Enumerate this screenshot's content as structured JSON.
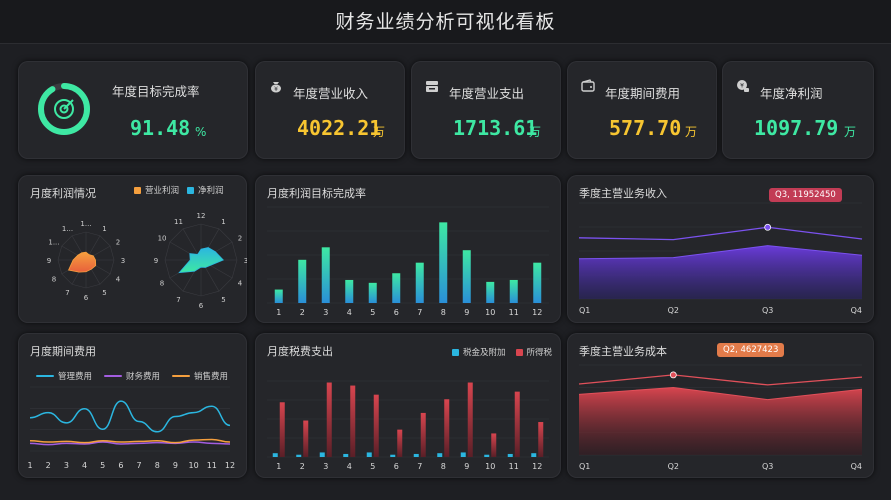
{
  "title": "财务业绩分析可视化看板",
  "kpis": {
    "target": {
      "label": "年度目标完成率",
      "value": "91.48",
      "unit": "%",
      "percent": 91.48
    },
    "revenue": {
      "label": "年度营业收入",
      "value": "4022.21",
      "unit": "万"
    },
    "expense": {
      "label": "年度营业支出",
      "value": "1713.61",
      "unit": "万"
    },
    "period_cost": {
      "label": "年度期间费用",
      "value": "577.70",
      "unit": "万"
    },
    "net_profit": {
      "label": "年度净利润",
      "value": "1097.79",
      "unit": "万"
    }
  },
  "colors": {
    "green": "#3ee8a3",
    "yellow": "#f7c531",
    "cyan": "#2bb6e0",
    "orange": "#f59f3e",
    "red": "#d8454f",
    "purple": "#6a3bd9"
  },
  "icons": [
    "target-icon",
    "money-bag-icon",
    "cash-register-icon",
    "wallet-icon",
    "coins-icon"
  ],
  "chart_data": [
    {
      "id": "monthly-profit",
      "type": "radar",
      "title": "月度利润情况",
      "legend": [
        "营业利润",
        "净利润"
      ],
      "legend_colors": [
        "#f59f3e",
        "#2bb6e0"
      ],
      "radar_left_labels": [
        "1...",
        "1",
        "2",
        "3",
        "4",
        "5",
        "6",
        "7",
        "8",
        "9",
        "1...",
        "1..."
      ],
      "radar_right_labels": [
        "12",
        "1",
        "2",
        "3",
        "4",
        "5",
        "6",
        "7",
        "8",
        "9",
        "10",
        "11"
      ],
      "series": [
        {
          "name": "营业利润",
          "values": [
            0.28,
            0.22,
            0.3,
            0.34,
            0.4,
            0.38,
            0.42,
            0.5,
            0.72,
            0.46,
            0.34,
            0.3
          ]
        },
        {
          "name": "净利润",
          "values": [
            0.3,
            0.4,
            0.46,
            0.62,
            0.3,
            0.24,
            0.2,
            0.36,
            0.7,
            0.3,
            0.36,
            0.18
          ]
        }
      ]
    },
    {
      "id": "profit-target",
      "type": "bar",
      "title": "月度利润目标完成率",
      "categories": [
        "1",
        "2",
        "3",
        "4",
        "5",
        "6",
        "7",
        "8",
        "9",
        "10",
        "11",
        "12"
      ],
      "values": [
        14,
        45,
        58,
        24,
        21,
        31,
        42,
        84,
        55,
        22,
        24,
        42
      ],
      "ylim": [
        0,
        100
      ]
    },
    {
      "id": "quarter-revenue",
      "type": "area",
      "title": "季度主营业务收入",
      "categories": [
        "Q1",
        "Q2",
        "Q3",
        "Q4"
      ],
      "series": [
        {
          "name": "line",
          "values": [
            10200000,
            9900000,
            11952450,
            10000000
          ]
        },
        {
          "name": "area",
          "values": [
            6700000,
            6900000,
            8900000,
            7300000
          ]
        }
      ],
      "ylim": [
        0,
        16000000
      ],
      "tooltip": "Q3, 11952450"
    },
    {
      "id": "period-cost",
      "type": "line",
      "title": "月度期间费用",
      "legend": [
        "管理费用",
        "财务费用",
        "销售费用"
      ],
      "legend_colors": [
        "#2bb6e0",
        "#a35de0",
        "#f59f3e"
      ],
      "categories": [
        "1",
        "2",
        "3",
        "4",
        "5",
        "6",
        "7",
        "8",
        "9",
        "10",
        "11",
        "12"
      ],
      "series": [
        {
          "name": "管理费用",
          "values": [
            52,
            60,
            44,
            66,
            34,
            78,
            46,
            30,
            54,
            60,
            70,
            40
          ]
        },
        {
          "name": "财务费用",
          "values": [
            12,
            10,
            12,
            11,
            14,
            11,
            12,
            13,
            12,
            14,
            12,
            11
          ]
        },
        {
          "name": "销售费用",
          "values": [
            16,
            14,
            15,
            13,
            16,
            14,
            15,
            16,
            13,
            17,
            18,
            14
          ]
        }
      ],
      "ylim": [
        0,
        100
      ]
    },
    {
      "id": "monthly-tax",
      "type": "bar",
      "title": "月度税费支出",
      "legend": [
        "税金及附加",
        "所得税"
      ],
      "legend_colors": [
        "#2bb6e0",
        "#d8454f"
      ],
      "categories": [
        "1",
        "2",
        "3",
        "4",
        "5",
        "6",
        "7",
        "8",
        "9",
        "10",
        "11",
        "12"
      ],
      "series": [
        {
          "name": "税金及附加",
          "values": [
            5,
            3,
            6,
            4,
            6,
            3,
            4,
            5,
            6,
            3,
            4,
            5
          ]
        },
        {
          "name": "所得税",
          "values": [
            72,
            48,
            98,
            94,
            82,
            36,
            58,
            76,
            98,
            31,
            86,
            46
          ]
        }
      ],
      "ylim": [
        0,
        100
      ]
    },
    {
      "id": "quarter-cost",
      "type": "area",
      "title": "季度主营业务成本",
      "categories": [
        "Q1",
        "Q2",
        "Q3",
        "Q4"
      ],
      "series": [
        {
          "name": "line",
          "values": [
            4100000,
            4627423,
            4050000,
            4500000
          ]
        },
        {
          "name": "area",
          "values": [
            3500000,
            3900000,
            3200000,
            3800000
          ]
        }
      ],
      "ylim": [
        0,
        5200000
      ],
      "tooltip": "Q2, 4627423"
    }
  ]
}
